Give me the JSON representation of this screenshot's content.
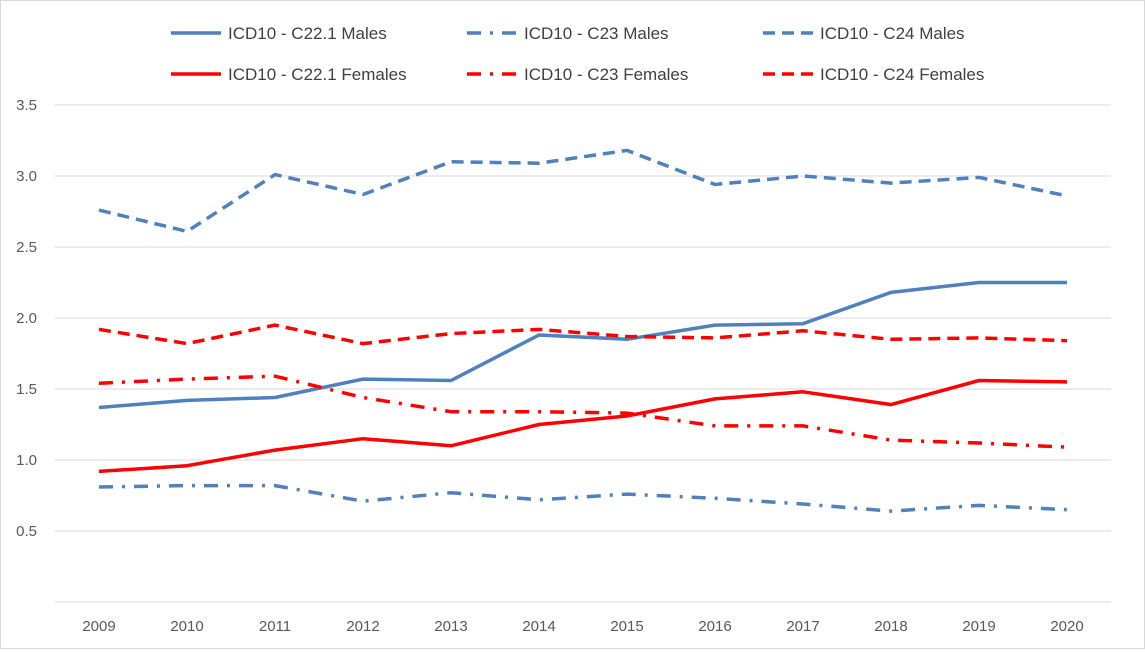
{
  "chart_data": {
    "type": "line",
    "title": "",
    "xlabel": "",
    "ylabel": "",
    "categories": [
      "2009",
      "2010",
      "2011",
      "2012",
      "2013",
      "2014",
      "2015",
      "2016",
      "2017",
      "2018",
      "2019",
      "2020"
    ],
    "ylim": [
      0,
      3.5
    ],
    "yticks": [
      "0.5",
      "1.0",
      "1.5",
      "2.0",
      "2.5",
      "3.0",
      "3.5"
    ],
    "ytick_values": [
      0.5,
      1.0,
      1.5,
      2.0,
      2.5,
      3.0,
      3.5
    ],
    "grid": true,
    "legend_position": "top",
    "series": [
      {
        "name": "ICD10 - C22.1 Males",
        "color": "#4f81bd",
        "style": "solid",
        "values": [
          1.37,
          1.42,
          1.44,
          1.57,
          1.56,
          1.88,
          1.85,
          1.95,
          1.96,
          2.18,
          2.25,
          2.25
        ]
      },
      {
        "name": "ICD10 - C23 Males",
        "color": "#4f81bd",
        "style": "dashdot",
        "values": [
          0.81,
          0.82,
          0.82,
          0.71,
          0.77,
          0.72,
          0.76,
          0.73,
          0.69,
          0.64,
          0.68,
          0.65
        ]
      },
      {
        "name": "ICD10 - C24 Males",
        "color": "#4f81bd",
        "style": "dashed",
        "values": [
          2.76,
          2.61,
          3.01,
          2.87,
          3.1,
          3.09,
          3.18,
          2.94,
          3.0,
          2.95,
          2.99,
          2.86
        ]
      },
      {
        "name": "ICD10 - C22.1 Females",
        "color": "#ff0000",
        "style": "solid",
        "values": [
          0.92,
          0.96,
          1.07,
          1.15,
          1.1,
          1.25,
          1.31,
          1.43,
          1.48,
          1.39,
          1.56,
          1.55
        ]
      },
      {
        "name": "ICD10 - C23 Females",
        "color": "#ff0000",
        "style": "dashdot",
        "values": [
          1.54,
          1.57,
          1.59,
          1.44,
          1.34,
          1.34,
          1.33,
          1.24,
          1.24,
          1.14,
          1.12,
          1.09
        ]
      },
      {
        "name": "ICD10 - C24 Females",
        "color": "#ff0000",
        "style": "dashed",
        "values": [
          1.92,
          1.82,
          1.95,
          1.82,
          1.89,
          1.92,
          1.87,
          1.86,
          1.91,
          1.85,
          1.86,
          1.84
        ]
      }
    ]
  }
}
